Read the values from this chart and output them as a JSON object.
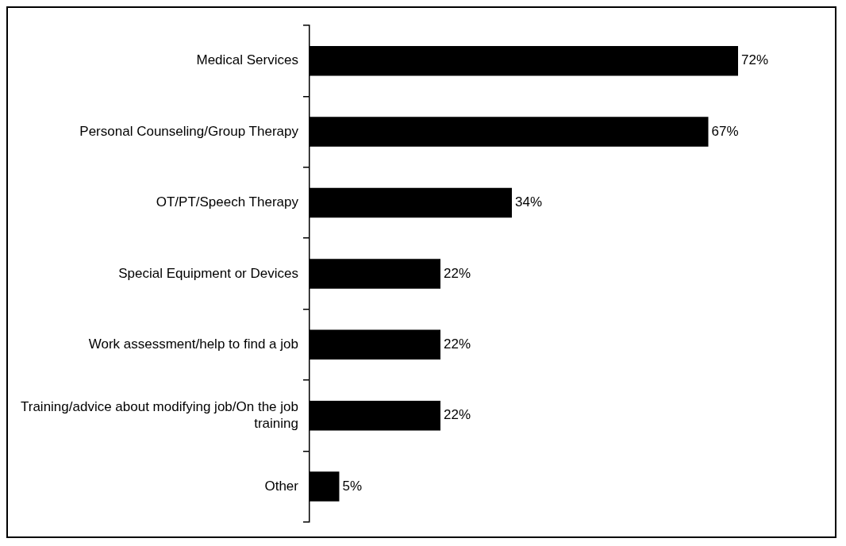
{
  "chart_data": {
    "type": "bar",
    "orientation": "horizontal",
    "categories": [
      "Medical Services",
      "Personal Counseling/Group Therapy",
      "OT/PT/Speech Therapy",
      "Special Equipment or Devices",
      "Work assessment/help to find a job",
      "Training/advice about modifying job/On the job training",
      "Other"
    ],
    "values": [
      72,
      67,
      34,
      22,
      22,
      22,
      5
    ],
    "value_labels": [
      "72%",
      "67%",
      "34%",
      "22%",
      "22%",
      "22%",
      "5%"
    ],
    "color": "#000000",
    "legend": false
  }
}
